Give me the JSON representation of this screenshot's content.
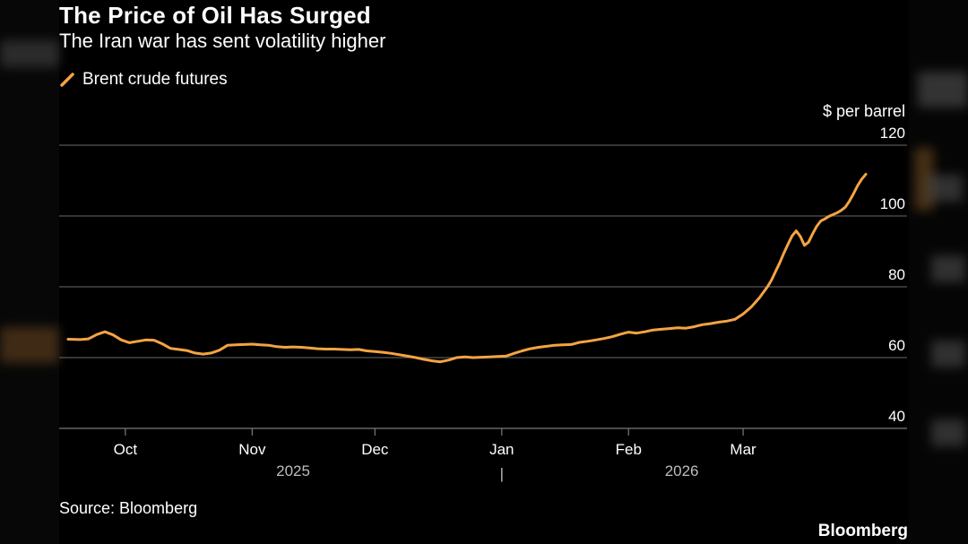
{
  "header": {
    "title": "The Price of Oil Has Surged",
    "subtitle": "The Iran war has sent volatility higher"
  },
  "footer": {
    "source": "Source: Bloomberg",
    "brand": "Bloomberg"
  },
  "colors": {
    "background": "#000000",
    "series": "#f5a343",
    "gridline": "#555555",
    "text": "#ffffff",
    "year_text": "#bdbdbd"
  },
  "chart_data": {
    "type": "line",
    "title": "The Price of Oil Has Surged",
    "subtitle": "The Iran war has sent volatility higher",
    "ylabel": "$ per barrel",
    "xlabel": "",
    "ylim": [
      40,
      120
    ],
    "xlim": [
      0,
      195
    ],
    "yticks": [
      40,
      60,
      80,
      100,
      120
    ],
    "xticks": [
      {
        "label": "Oct",
        "x": 14
      },
      {
        "label": "Nov",
        "x": 45
      },
      {
        "label": "Dec",
        "x": 75
      },
      {
        "label": "Jan",
        "x": 106
      },
      {
        "label": "Feb",
        "x": 137
      },
      {
        "label": "Mar",
        "x": 165
      }
    ],
    "years": [
      {
        "label": "2025",
        "x": 55
      },
      {
        "label": "2026",
        "x": 150
      }
    ],
    "year_divider": {
      "label": "|",
      "x": 106
    },
    "grid": true,
    "legend": "top-left",
    "series": [
      {
        "name": "Brent crude futures",
        "x": [
          0,
          3,
          5,
          7,
          9,
          11,
          13,
          15,
          17,
          19,
          21,
          23,
          25,
          27,
          29,
          31,
          33,
          35,
          37,
          39,
          41,
          43,
          45,
          47,
          49,
          51,
          53,
          55,
          57,
          59,
          61,
          63,
          65,
          67,
          69,
          71,
          73,
          75,
          77,
          79,
          81,
          83,
          85,
          87,
          89,
          91,
          93,
          95,
          97,
          99,
          101,
          103,
          105,
          107,
          109,
          111,
          113,
          115,
          117,
          119,
          121,
          123,
          125,
          127,
          129,
          131,
          133,
          135,
          137,
          139,
          141,
          143,
          145,
          147,
          149,
          151,
          153,
          155,
          157,
          159,
          161,
          163,
          165,
          167,
          169,
          171,
          172,
          173,
          174,
          175,
          176,
          177,
          178,
          179,
          180,
          181,
          182,
          183,
          184,
          185,
          186,
          187,
          188,
          189,
          190,
          191,
          192,
          193,
          194,
          195
        ],
        "values": [
          65.2,
          65.1,
          65.3,
          66.5,
          67.3,
          66.4,
          65.0,
          64.2,
          64.6,
          65.0,
          64.9,
          63.9,
          62.6,
          62.3,
          62.0,
          61.3,
          61.0,
          61.3,
          62.1,
          63.5,
          63.6,
          63.7,
          63.8,
          63.6,
          63.5,
          63.1,
          62.9,
          63.0,
          62.9,
          62.7,
          62.5,
          62.4,
          62.4,
          62.3,
          62.2,
          62.3,
          61.9,
          61.7,
          61.5,
          61.2,
          60.8,
          60.4,
          60.0,
          59.5,
          59.1,
          58.8,
          59.3,
          60.0,
          60.2,
          60.0,
          60.1,
          60.2,
          60.3,
          60.4,
          61.2,
          61.9,
          62.5,
          62.9,
          63.2,
          63.5,
          63.6,
          63.7,
          64.3,
          64.6,
          65.0,
          65.4,
          65.9,
          66.6,
          67.2,
          66.9,
          67.3,
          67.8,
          68.0,
          68.2,
          68.4,
          68.3,
          68.7,
          69.3,
          69.6,
          70.0,
          70.3,
          70.8,
          72.3,
          74.3,
          76.9,
          80.1,
          82.0,
          84.5,
          86.9,
          89.6,
          92.1,
          94.4,
          95.8,
          94.2,
          91.7,
          92.6,
          95.0,
          97.1,
          98.6,
          99.2,
          99.9,
          100.4,
          100.9,
          101.6,
          102.5,
          104.2,
          106.3,
          108.6,
          110.4,
          111.8
        ]
      }
    ]
  }
}
